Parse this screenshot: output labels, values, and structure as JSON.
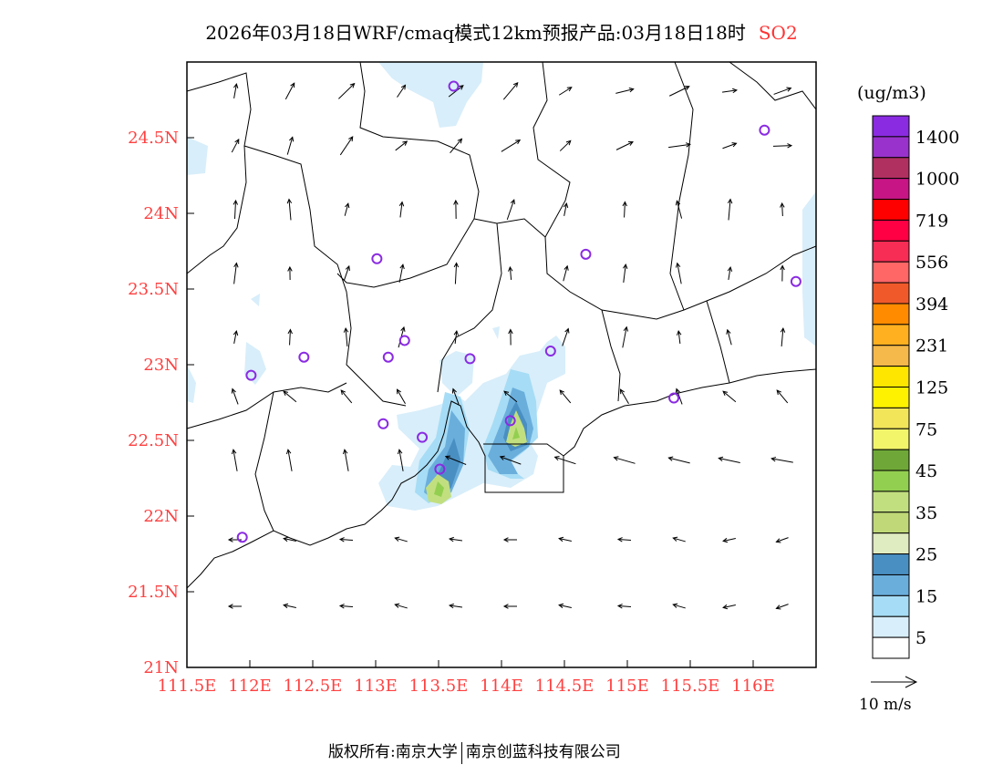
{
  "title": {
    "main": "2026年03月18日WRF/cmaq模式12km预报产品:03月18日18时",
    "species": "SO2"
  },
  "map": {
    "lon_range": [
      111.5,
      116.5
    ],
    "lat_range": [
      21,
      25
    ],
    "lon_ticks": [
      "111.5E",
      "112E",
      "112.5E",
      "113E",
      "113.5E",
      "114E",
      "114.5E",
      "115E",
      "115.5E",
      "116E"
    ],
    "lat_ticks": [
      "21N",
      "21.5N",
      "22N",
      "22.5N",
      "23N",
      "23.5N",
      "24N",
      "24.5N"
    ],
    "sites": [
      [
        113.62,
        24.84
      ],
      [
        116.09,
        24.55
      ],
      [
        113.01,
        23.7
      ],
      [
        114.67,
        23.73
      ],
      [
        116.34,
        23.55
      ],
      [
        113.23,
        23.16
      ],
      [
        112.43,
        23.05
      ],
      [
        113.1,
        23.05
      ],
      [
        113.75,
        23.04
      ],
      [
        114.39,
        23.09
      ],
      [
        112.01,
        22.93
      ],
      [
        115.37,
        22.78
      ],
      [
        113.06,
        22.61
      ],
      [
        114.07,
        22.63
      ],
      [
        113.37,
        22.52
      ],
      [
        113.51,
        22.31
      ],
      [
        111.94,
        21.86
      ]
    ],
    "site_color": "#8a2be2"
  },
  "colorbar": {
    "unit": "(ug/m3)",
    "colors": [
      "#8a2be2",
      "#9932cc",
      "#b03060",
      "#c71585",
      "#ff0000",
      "#ff0044",
      "#f72d55",
      "#ff6666",
      "#f05a2a",
      "#ff8c00",
      "#ffb020",
      "#f5b84a",
      "#ffe600",
      "#fff200",
      "#f2e55a",
      "#f2f56a",
      "#6fa838",
      "#92cf50",
      "#c2df80",
      "#c0d878",
      "#dfebc0",
      "#4a8fc2",
      "#6aaedc",
      "#a6dcf5",
      "#d8eefa",
      "#ffffff"
    ],
    "labels": [
      "1400",
      "1000",
      "719",
      "556",
      "394",
      "231",
      "125",
      "75",
      "45",
      "35",
      "25",
      "15",
      "5"
    ]
  },
  "wind_legend": {
    "label": "10 m/s"
  },
  "footer": {
    "left": "版权所有:南京大学",
    "right": "南京创蓝科技有限公司"
  }
}
